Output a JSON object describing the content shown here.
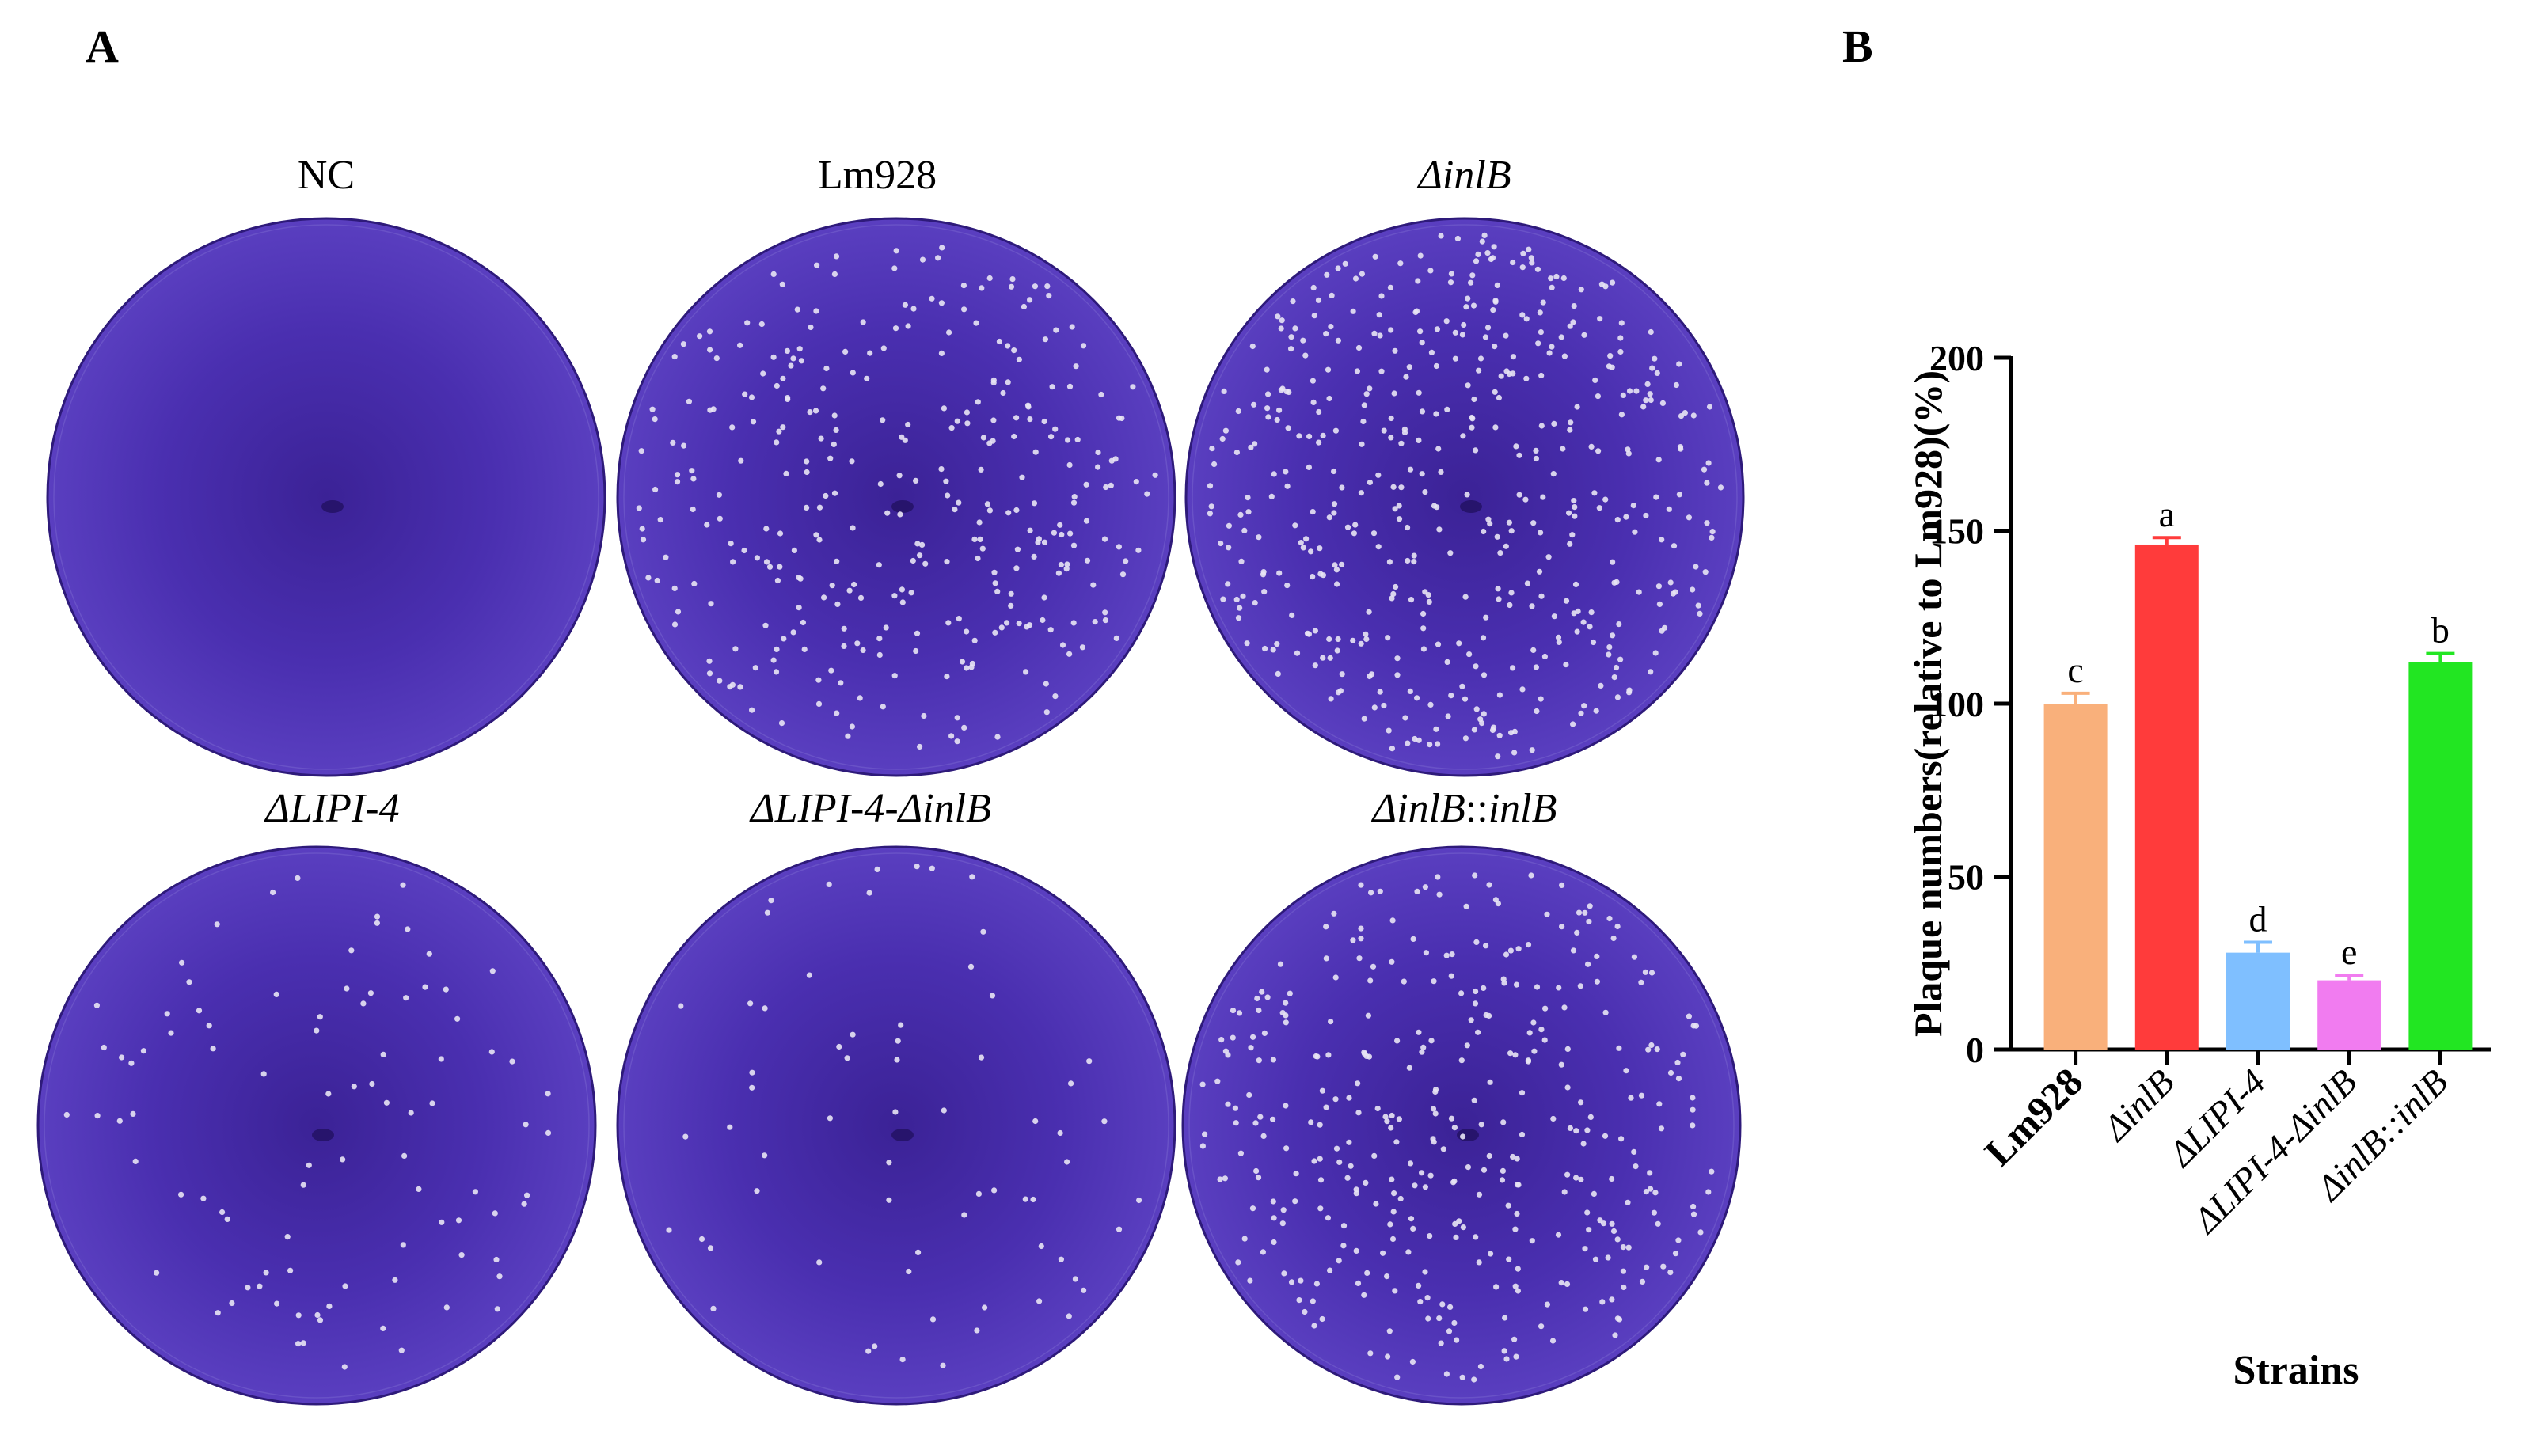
{
  "panel_a": {
    "letter": "A",
    "plates": [
      {
        "id": "nc",
        "label": "NC",
        "italic": false,
        "plaque_level": 0
      },
      {
        "id": "lm928",
        "label": "Lm928",
        "italic": false,
        "plaque_level": 100
      },
      {
        "id": "inlb",
        "label": "ΔinlB",
        "italic": true,
        "plaque_level": 146
      },
      {
        "id": "lipi4",
        "label": "ΔLIPI-4",
        "italic": true,
        "plaque_level": 28
      },
      {
        "id": "lipi4-inlb",
        "label": "ΔLIPI-4-ΔinlB",
        "italic": true,
        "plaque_level": 20
      },
      {
        "id": "inlb-comp",
        "label_prefix": "ΔinlB",
        "label_sep": "::",
        "label_suffix": "inlB",
        "italic": true,
        "plaque_level": 112
      }
    ]
  },
  "panel_b": {
    "letter": "B"
  },
  "colors": {
    "plate_fill": "#4a2fb0",
    "plate_dark": "#3b2296",
    "plaque": "#e8e4f4"
  },
  "chart_data": {
    "type": "bar",
    "categories": [
      "Lm928",
      "ΔinlB",
      "ΔLIPI-4",
      "ΔLIPI-4-ΔinlB",
      "ΔinlB::inlB"
    ],
    "category_styles": [
      "bold",
      "italic",
      "italic",
      "italic",
      "italic"
    ],
    "values": [
      100,
      146,
      28,
      20,
      112
    ],
    "errors": [
      3,
      2,
      3,
      1.5,
      2.5
    ],
    "significance_letters": [
      "c",
      "a",
      "d",
      "e",
      "b"
    ],
    "bar_colors": [
      "#f9b07b",
      "#ff3b3b",
      "#7fbfff",
      "#f17cf0",
      "#22e622"
    ],
    "xlabel": "Strains",
    "ylabel": "Plaque numbers(relative to Lm928)(%)",
    "ylim": [
      0,
      200
    ],
    "yticks": [
      0,
      50,
      100,
      150,
      200
    ],
    "grid": false,
    "legend": "none"
  }
}
